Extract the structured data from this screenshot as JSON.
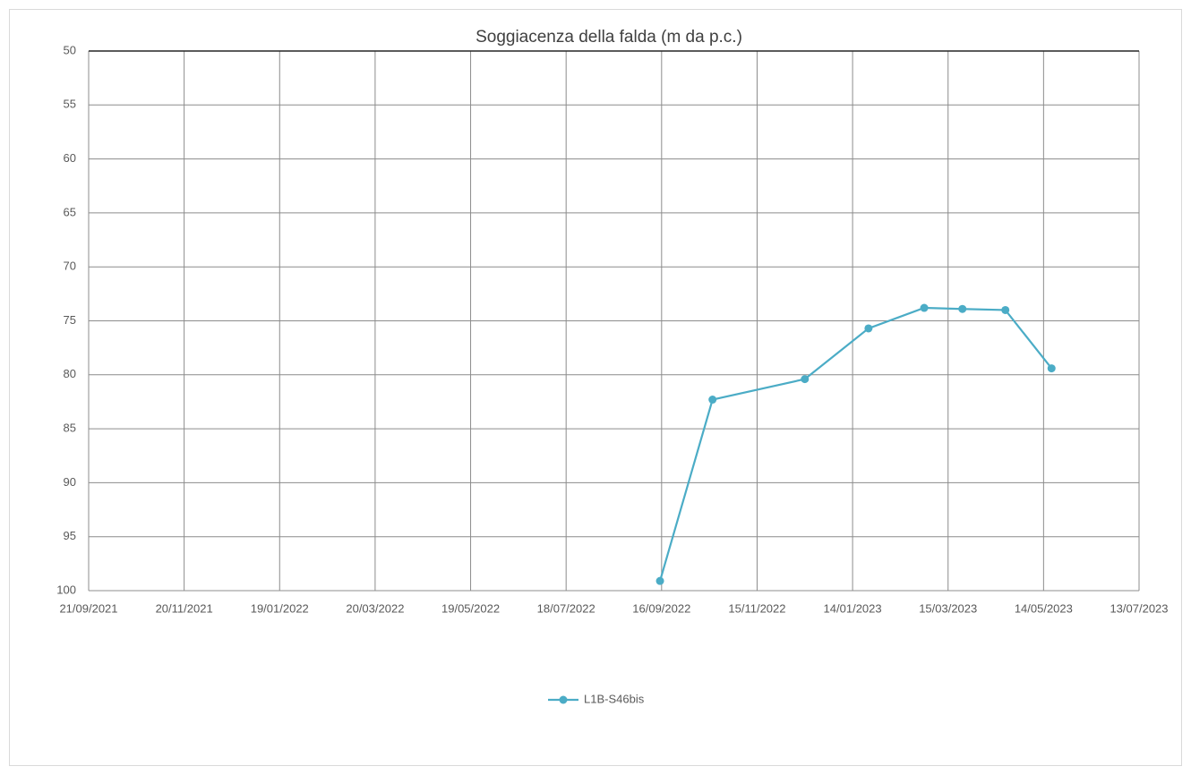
{
  "chart_data": {
    "type": "line",
    "title": "Soggiacenza della falda (m da p.c.)",
    "x": [
      "15/09/2022",
      "18/10/2022",
      "15/12/2022",
      "24/01/2023",
      "28/02/2023",
      "24/03/2023",
      "20/04/2023",
      "19/05/2023"
    ],
    "series": [
      {
        "name": "L1B-S46bis",
        "color": "#4bacc6",
        "values": [
          99.1,
          82.3,
          80.4,
          75.7,
          73.8,
          73.9,
          74.0,
          79.4
        ]
      }
    ],
    "xlim": [
      "21/09/2021",
      "13/07/2023"
    ],
    "xticks": [
      "21/09/2021",
      "20/11/2021",
      "19/01/2022",
      "20/03/2022",
      "19/05/2022",
      "18/07/2022",
      "16/09/2022",
      "15/11/2022",
      "14/01/2023",
      "15/03/2023",
      "14/05/2023",
      "13/07/2023"
    ],
    "ylim": [
      50,
      100
    ],
    "yticks": [
      50,
      55,
      60,
      65,
      70,
      75,
      80,
      85,
      90,
      95,
      100
    ],
    "y_reversed": true,
    "grid": true,
    "legend": "bottom"
  }
}
